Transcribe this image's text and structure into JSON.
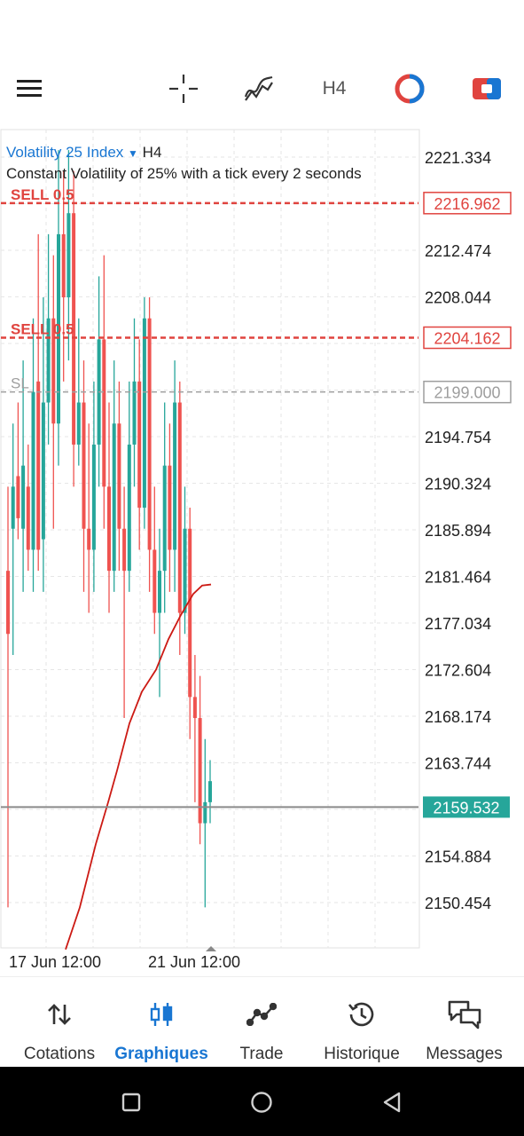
{
  "toolbar": {
    "menu_icon": "hamburger-menu-icon",
    "crosshair_icon": "crosshair-icon",
    "indicator_icon": "indicators-icon",
    "timeframe": "H4",
    "accent": "#e0443f"
  },
  "chart_header": {
    "symbol": "Volatility 25 Index",
    "timeframe": "H4",
    "description": "Constant Volatility of 25% with a tick every 2 seconds"
  },
  "chart_data": {
    "type": "candlestick",
    "y_ticks": [
      "2221.334",
      "2212.474",
      "2208.044",
      "2194.754",
      "2190.324",
      "2185.894",
      "2181.464",
      "2177.034",
      "2172.604",
      "2168.174",
      "2163.744",
      "2154.884",
      "2150.454"
    ],
    "x_ticks": [
      "17 Jun 12:00",
      "21 Jun 12:00"
    ],
    "current_price": "2159.532",
    "orders": [
      {
        "label": "SELL 0.5",
        "price": "2216.962"
      },
      {
        "label": "SELL 0.5",
        "price": "2204.162"
      },
      {
        "label": "SL",
        "price": "2199.000"
      }
    ],
    "bull_color": "#26a69a",
    "bear_color": "#ef5350",
    "order_color": "#e0443f",
    "ma_color": "#cc1a14"
  },
  "bottom_nav": {
    "items": [
      {
        "label": "Cotations",
        "icon": "quotes-arrows-icon"
      },
      {
        "label": "Graphiques",
        "icon": "candles-chart-icon"
      },
      {
        "label": "Trade",
        "icon": "trade-line-icon"
      },
      {
        "label": "Historique",
        "icon": "history-clock-icon"
      },
      {
        "label": "Messages",
        "icon": "messages-chat-icon"
      }
    ],
    "active_color": "#1976d2"
  },
  "system_nav": {
    "recent_icon": "recent-apps-icon",
    "home_icon": "home-icon",
    "back_icon": "back-icon"
  }
}
